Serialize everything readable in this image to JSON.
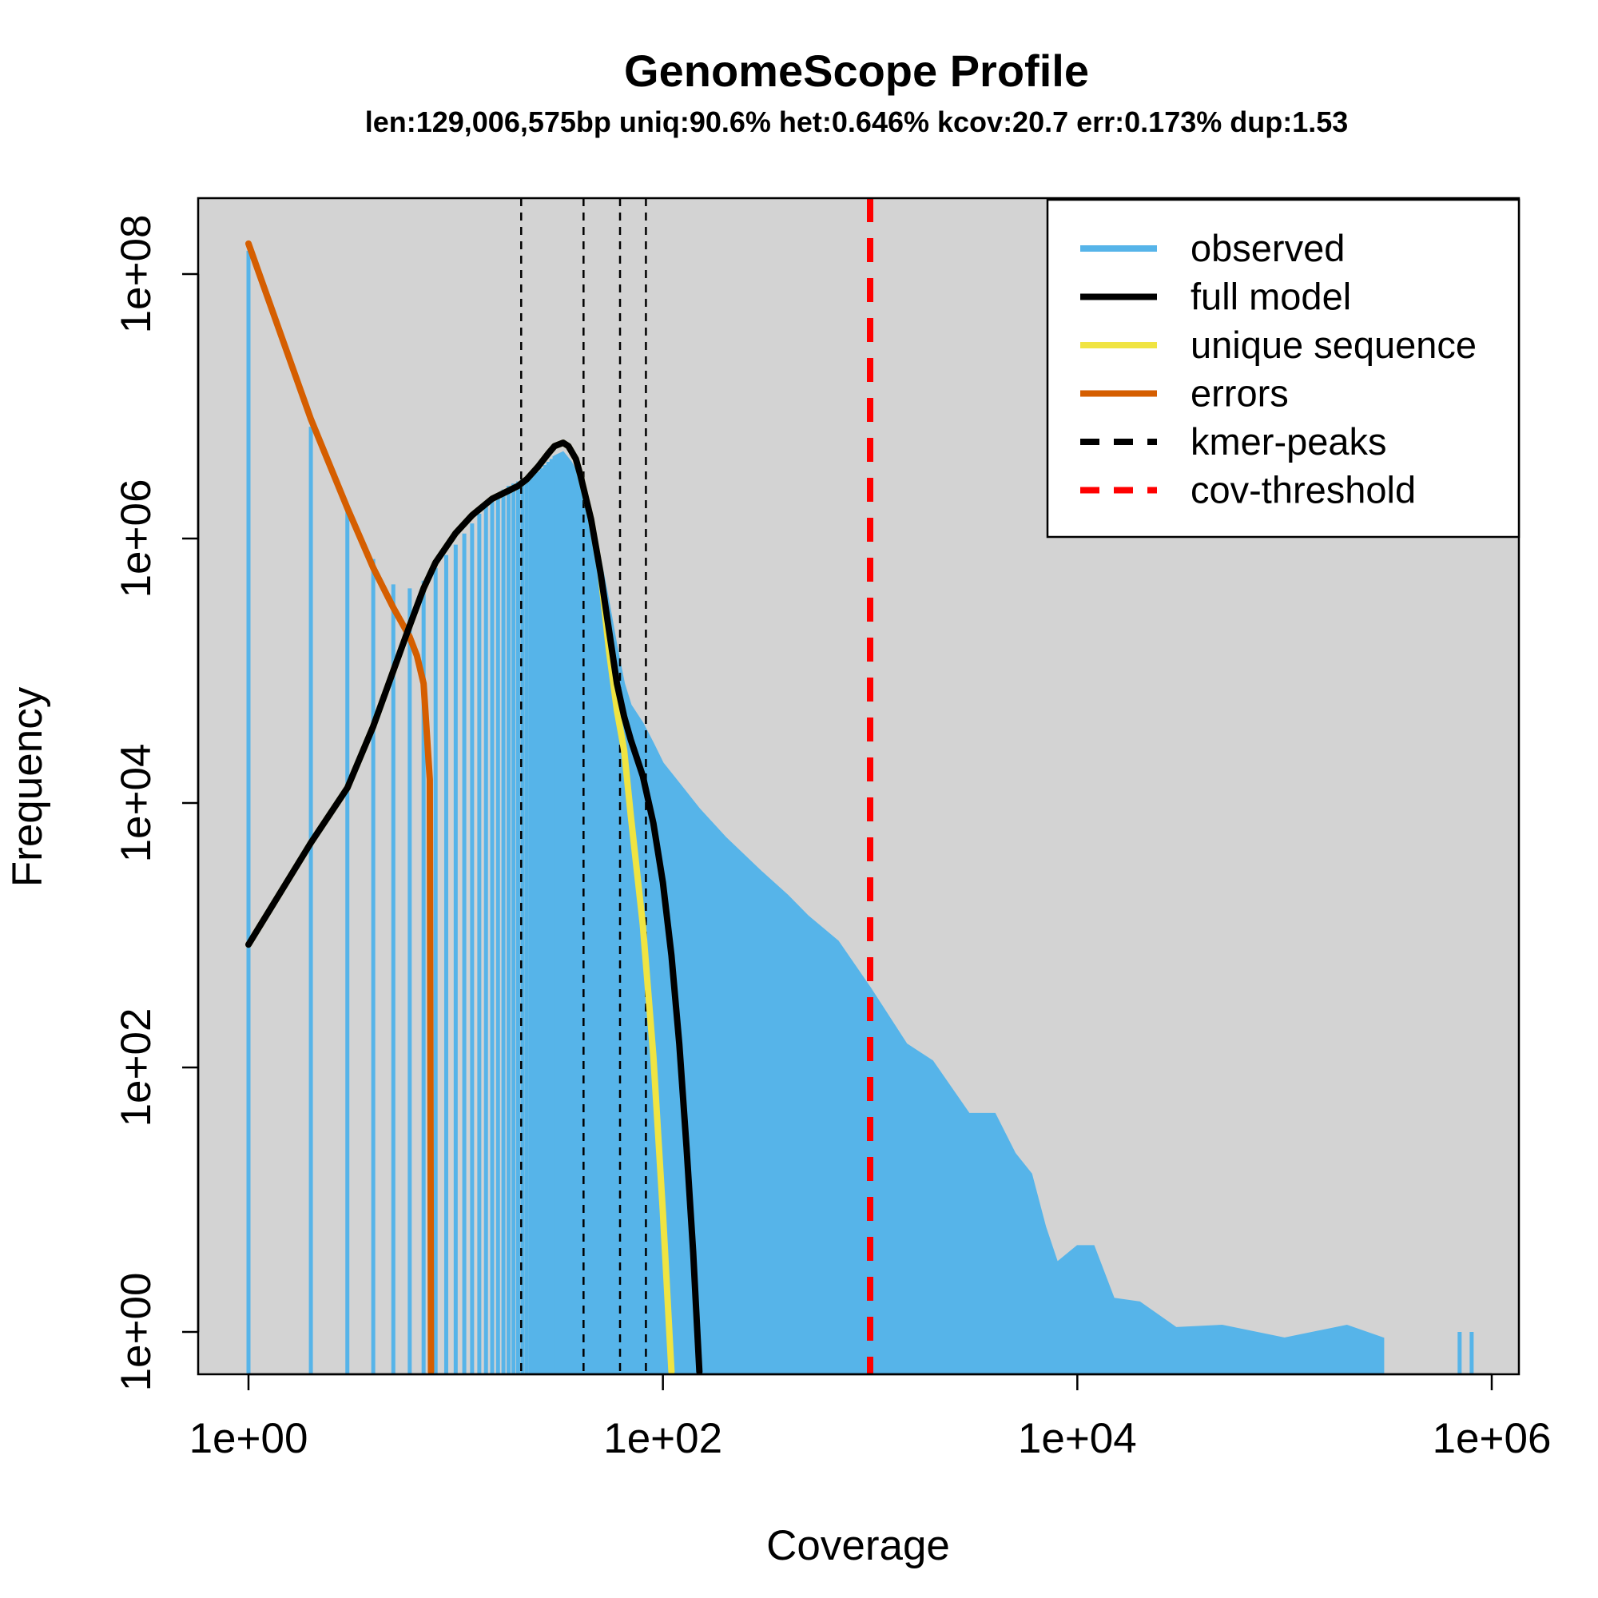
{
  "chart_data": {
    "type": "line",
    "title": "GenomeScope Profile",
    "subtitle": "len:129,006,575bp uniq:90.6% het:0.646% kcov:20.7 err:0.173% dup:1.53",
    "xlabel": "Coverage",
    "ylabel": "Frequency",
    "x_scale": "log",
    "y_scale": "log",
    "xlim": [
      1,
      1000000
    ],
    "ylim": [
      0.5,
      300000000
    ],
    "x_ticks": [
      {
        "value": 1,
        "label": "1e+00"
      },
      {
        "value": 100,
        "label": "1e+02"
      },
      {
        "value": 10000,
        "label": "1e+04"
      },
      {
        "value": 1000000,
        "label": "1e+06"
      }
    ],
    "y_ticks": [
      {
        "value": 1,
        "label": "1e+00"
      },
      {
        "value": 100,
        "label": "1e+02"
      },
      {
        "value": 10000,
        "label": "1e+04"
      },
      {
        "value": 1000000,
        "label": "1e+06"
      },
      {
        "value": 100000000,
        "label": "1e+08"
      }
    ],
    "background": "#d3d3d3",
    "legend_position": "top-right",
    "series": [
      {
        "name": "observed",
        "kind": "histogram",
        "color": "#56b4e9",
        "points": [
          [
            1,
            150000000
          ],
          [
            2,
            7000000
          ],
          [
            3,
            1600000
          ],
          [
            4,
            700000
          ],
          [
            5,
            450000
          ],
          [
            6,
            420000
          ],
          [
            7,
            480000
          ],
          [
            8,
            600000
          ],
          [
            9,
            750000
          ],
          [
            10,
            900000
          ],
          [
            12,
            1300000
          ],
          [
            14,
            1800000
          ],
          [
            16,
            2200000
          ],
          [
            18,
            2500000
          ],
          [
            20,
            2700000
          ],
          [
            22,
            2900000
          ],
          [
            25,
            3200000
          ],
          [
            28,
            3800000
          ],
          [
            30,
            4200000
          ],
          [
            33,
            4500000
          ],
          [
            36,
            3800000
          ],
          [
            40,
            2800000
          ],
          [
            45,
            1500000
          ],
          [
            50,
            700000
          ],
          [
            55,
            320000
          ],
          [
            60,
            150000
          ],
          [
            65,
            80000
          ],
          [
            70,
            55000
          ],
          [
            80,
            40000
          ],
          [
            90,
            28000
          ],
          [
            100,
            20000
          ],
          [
            120,
            14000
          ],
          [
            150,
            9000
          ],
          [
            200,
            5500
          ],
          [
            300,
            3000
          ],
          [
            400,
            2000
          ],
          [
            500,
            1400
          ],
          [
            700,
            900
          ],
          [
            1000,
            400
          ],
          [
            1500,
            150
          ],
          [
            2000,
            100
          ],
          [
            3000,
            50
          ],
          [
            4000,
            40
          ],
          [
            5000,
            25
          ],
          [
            6000,
            14
          ],
          [
            7000,
            7
          ],
          [
            8000,
            3
          ],
          [
            10000,
            5
          ],
          [
            12000,
            4
          ],
          [
            15000,
            2
          ],
          [
            20000,
            1.5
          ],
          [
            30000,
            1.2
          ],
          [
            50000,
            1
          ],
          [
            100000,
            1
          ],
          [
            200000,
            1
          ],
          [
            300000,
            1
          ]
        ],
        "outliers": [
          {
            "x": 700000,
            "y": 1
          },
          {
            "x": 800000,
            "y": 1
          }
        ]
      },
      {
        "name": "full model",
        "kind": "line",
        "color": "#000000",
        "points": [
          [
            1,
            850
          ],
          [
            2,
            5000
          ],
          [
            3,
            13000
          ],
          [
            4,
            38000
          ],
          [
            5,
            100000
          ],
          [
            6,
            220000
          ],
          [
            7,
            420000
          ],
          [
            8,
            660000
          ],
          [
            10,
            1100000
          ],
          [
            12,
            1500000
          ],
          [
            15,
            2000000
          ],
          [
            18,
            2300000
          ],
          [
            20,
            2500000
          ],
          [
            22,
            2800000
          ],
          [
            25,
            3500000
          ],
          [
            28,
            4400000
          ],
          [
            30,
            5000000
          ],
          [
            33,
            5300000
          ],
          [
            35,
            5000000
          ],
          [
            38,
            4000000
          ],
          [
            40,
            3000000
          ],
          [
            45,
            1400000
          ],
          [
            50,
            550000
          ],
          [
            55,
            200000
          ],
          [
            60,
            80000
          ],
          [
            65,
            45000
          ],
          [
            70,
            30000
          ],
          [
            80,
            16000
          ],
          [
            90,
            7000
          ],
          [
            100,
            2500
          ],
          [
            110,
            700
          ],
          [
            120,
            150
          ],
          [
            130,
            25
          ],
          [
            140,
            4
          ],
          [
            150,
            0.5
          ]
        ]
      },
      {
        "name": "unique sequence",
        "kind": "line",
        "color": "#f0e442",
        "points": [
          [
            1,
            850
          ],
          [
            2,
            5000
          ],
          [
            3,
            13000
          ],
          [
            4,
            38000
          ],
          [
            5,
            100000
          ],
          [
            6,
            220000
          ],
          [
            7,
            420000
          ],
          [
            8,
            660000
          ],
          [
            10,
            1100000
          ],
          [
            12,
            1500000
          ],
          [
            15,
            2000000
          ],
          [
            18,
            2300000
          ],
          [
            20,
            2500000
          ],
          [
            22,
            2800000
          ],
          [
            25,
            3500000
          ],
          [
            28,
            4400000
          ],
          [
            30,
            5000000
          ],
          [
            33,
            5300000
          ],
          [
            35,
            5000000
          ],
          [
            38,
            4000000
          ],
          [
            40,
            3000000
          ],
          [
            45,
            1400000
          ],
          [
            50,
            550000
          ],
          [
            55,
            140000
          ],
          [
            60,
            50000
          ],
          [
            65,
            25000
          ],
          [
            70,
            8000
          ],
          [
            80,
            1200
          ],
          [
            90,
            120
          ],
          [
            100,
            8
          ],
          [
            110,
            0.5
          ]
        ]
      },
      {
        "name": "errors",
        "kind": "line",
        "color": "#d55e00",
        "points": [
          [
            1,
            170000000
          ],
          [
            2,
            8000000
          ],
          [
            3,
            1700000
          ],
          [
            4,
            600000
          ],
          [
            5,
            300000
          ],
          [
            6,
            180000
          ],
          [
            6.5,
            130000
          ],
          [
            7,
            80000
          ],
          [
            7.5,
            15000
          ],
          [
            7.6,
            0.5
          ]
        ]
      }
    ],
    "kmer_peaks": {
      "name": "kmer-peaks",
      "color": "#000000",
      "x": [
        20.7,
        41.4,
        62.1,
        82.8
      ]
    },
    "cov_threshold": {
      "name": "cov-threshold",
      "color": "#ff0000",
      "x": 1000
    },
    "legend": [
      {
        "label": "observed",
        "color": "#56b4e9",
        "dash": "solid"
      },
      {
        "label": "full model",
        "color": "#000000",
        "dash": "solid"
      },
      {
        "label": "unique sequence",
        "color": "#f0e442",
        "dash": "solid"
      },
      {
        "label": "errors",
        "color": "#d55e00",
        "dash": "solid"
      },
      {
        "label": "kmer-peaks",
        "color": "#000000",
        "dash": "dashed"
      },
      {
        "label": "cov-threshold",
        "color": "#ff0000",
        "dash": "dashed"
      }
    ]
  }
}
